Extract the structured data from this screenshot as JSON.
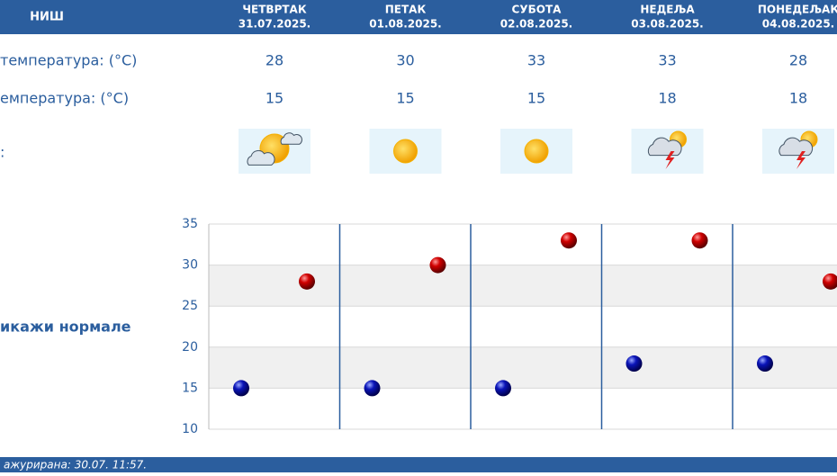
{
  "header": {
    "city": "НИШ",
    "days": [
      {
        "name": "ЧЕТВРТАК",
        "date": "31.07.2025."
      },
      {
        "name": "ПЕТАК",
        "date": "01.08.2025."
      },
      {
        "name": "СУБОТА",
        "date": "02.08.2025."
      },
      {
        "name": "НЕДЕЉА",
        "date": "03.08.2025."
      },
      {
        "name": "ПОНЕДЕЉАК",
        "date": "04.08.2025."
      }
    ]
  },
  "table": {
    "rows": [
      {
        "label": "температура: (°C)",
        "values": [
          28,
          30,
          33,
          33,
          28
        ]
      },
      {
        "label": "емпература: (°C)",
        "values": [
          15,
          15,
          15,
          18,
          18
        ]
      },
      {
        "label": ":"
      }
    ]
  },
  "normals_link": "икажи нормале",
  "footer": {
    "text": "ажурирана:  30.07.  11:57."
  },
  "chart_data": {
    "type": "dot",
    "series": [
      {
        "color": "#cc0000",
        "values": [
          28,
          30,
          33,
          33,
          28
        ]
      },
      {
        "color": "#0a14a8",
        "values": [
          15,
          15,
          15,
          18,
          18
        ]
      }
    ],
    "ylim": [
      10,
      35
    ],
    "yticks": [
      10,
      15,
      20,
      25,
      30,
      35
    ],
    "grid": true
  }
}
